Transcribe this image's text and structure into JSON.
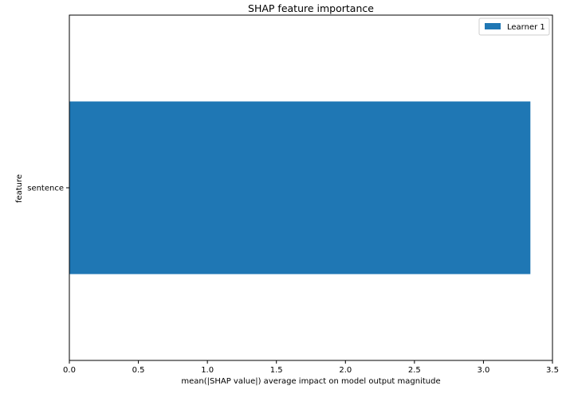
{
  "chart_data": {
    "type": "bar",
    "orientation": "horizontal",
    "title": "SHAP feature importance",
    "xlabel": "mean(|SHAP value|) average impact on model output magnitude",
    "ylabel": "feature",
    "categories": [
      "sentence"
    ],
    "series": [
      {
        "name": "Learner 1",
        "values": [
          3.34
        ],
        "color": "#1f77b4"
      }
    ],
    "xlim": [
      0,
      3.5
    ],
    "xticks": [
      "0.0",
      "0.5",
      "1.0",
      "1.5",
      "2.0",
      "2.5",
      "3.0",
      "3.5"
    ],
    "grid": false,
    "legend_position": "top-right"
  }
}
